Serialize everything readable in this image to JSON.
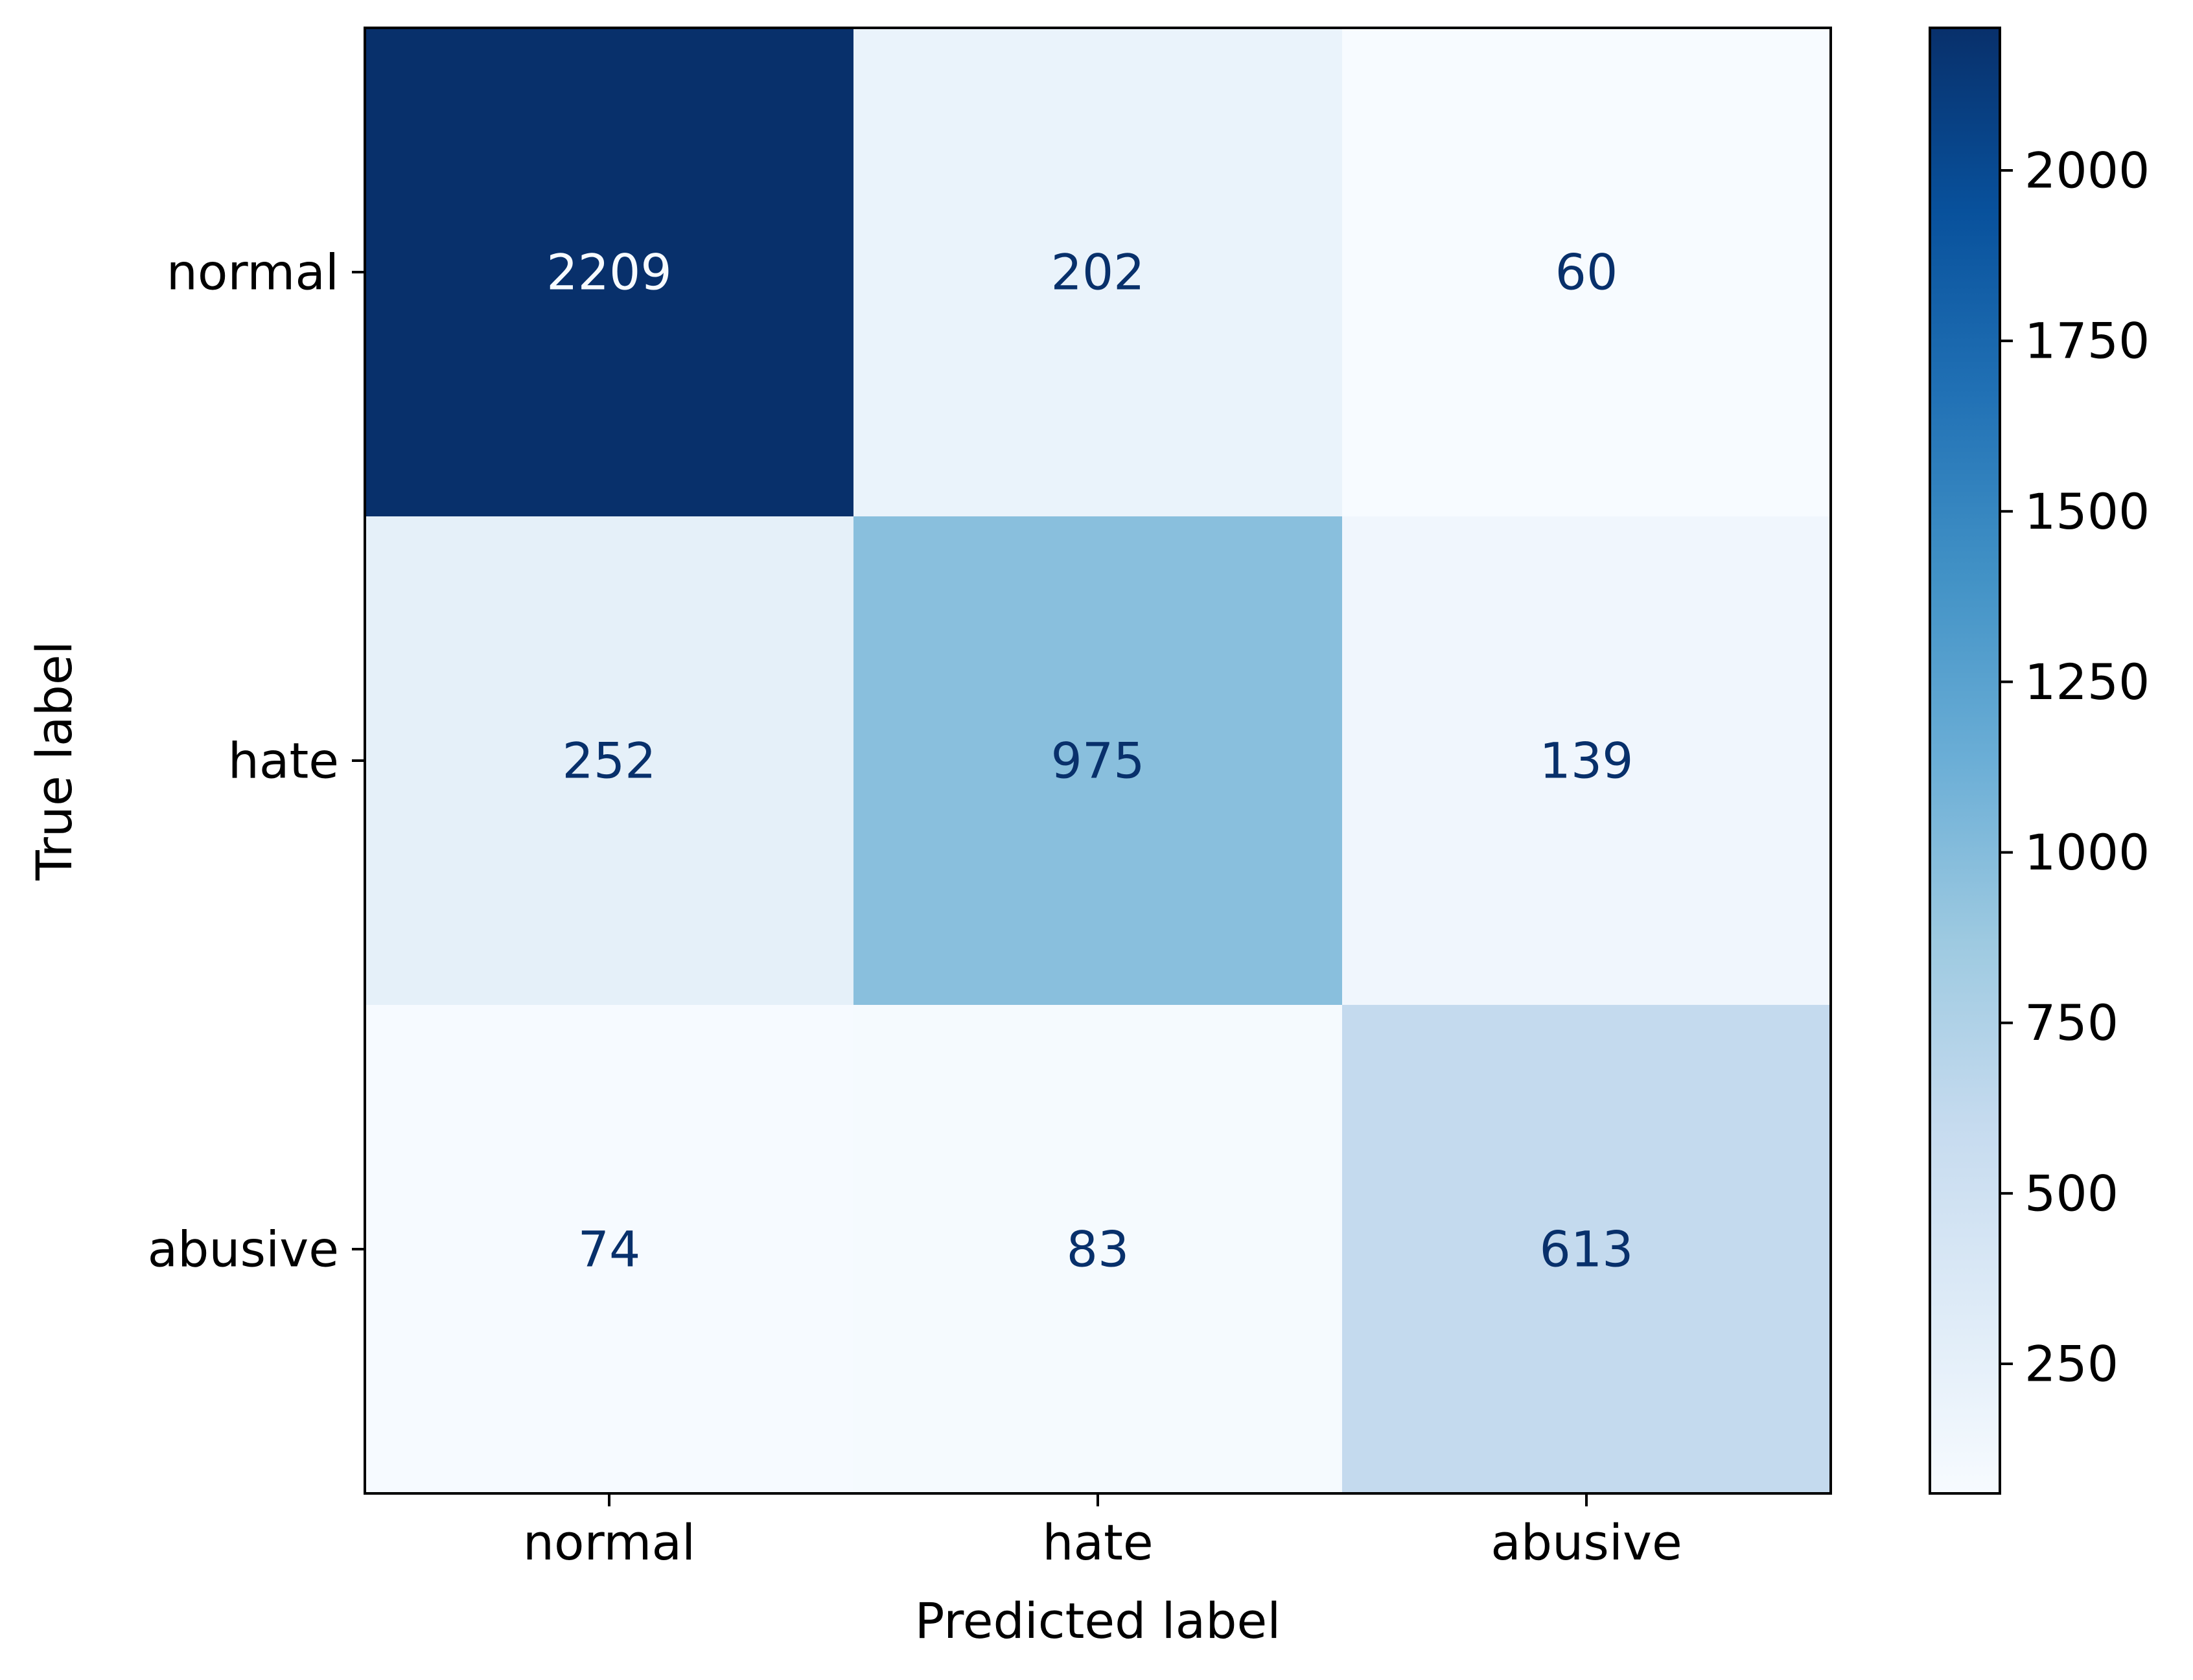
{
  "chart_data": {
    "type": "heatmap",
    "title": "",
    "xlabel": "Predicted label",
    "ylabel": "True label",
    "x_categories": [
      "normal",
      "hate",
      "abusive"
    ],
    "y_categories": [
      "normal",
      "hate",
      "abusive"
    ],
    "matrix": [
      [
        2209,
        202,
        60
      ],
      [
        252,
        975,
        139
      ],
      [
        74,
        83,
        613
      ]
    ],
    "colormap": "Blues",
    "colorbar": {
      "ticks": [
        250,
        500,
        750,
        1000,
        1250,
        1500,
        1750,
        2000
      ],
      "range": [
        60,
        2209
      ]
    },
    "text_colors": {
      "dark_cell": "#f7fbff",
      "light_cell": "#08306b"
    }
  }
}
